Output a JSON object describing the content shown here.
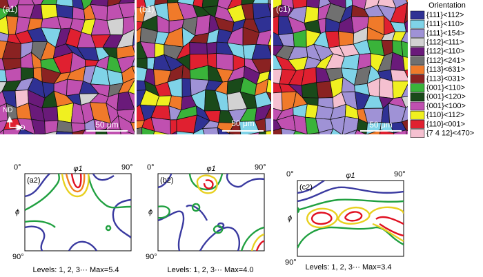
{
  "maps": [
    {
      "label": "(a1)",
      "scale": "50 μm"
    },
    {
      "label": "(b1)",
      "scale": "50 μm"
    },
    {
      "label": "(c1)",
      "scale": "50 μm"
    }
  ],
  "axes": {
    "nd": "ND",
    "rd": "RD"
  },
  "legend": {
    "title": "Orientation",
    "items": [
      {
        "label": "{111}<112>",
        "color": "#2f3194"
      },
      {
        "label": "{111}<110>",
        "color": "#7fd3e8"
      },
      {
        "label": "{111}<154>",
        "color": "#9f92d6"
      },
      {
        "label": "{112}<111>",
        "color": "#d2d2d2"
      },
      {
        "label": "{112}<110>",
        "color": "#6a1a7a"
      },
      {
        "label": "{112}<241>",
        "color": "#707070"
      },
      {
        "label": "{113}<631>",
        "color": "#f07a2a"
      },
      {
        "label": "{113}<031>",
        "color": "#8a2222"
      },
      {
        "label": "{001}<110>",
        "color": "#3ab33a"
      },
      {
        "label": "{001}<120>",
        "color": "#1a4a1a"
      },
      {
        "label": "{001}<100>",
        "color": "#c050b0"
      },
      {
        "label": "{110}<112>",
        "color": "#f0f020"
      },
      {
        "label": "{110}<001>",
        "color": "#e02030"
      },
      {
        "label": "{7 4 12}<470>",
        "color": "#f5c0d0"
      }
    ]
  },
  "odf": [
    {
      "label": "(a2)",
      "start": "0°",
      "end_x": "90°",
      "x_label": "φ1",
      "y_label": "ϕ",
      "end_y": "90°",
      "caption": "Levels: 1, 2, 3··· Max=5.4"
    },
    {
      "label": "(b2)",
      "start": "0°",
      "end_x": "90°",
      "x_label": "φ1",
      "y_label": "ϕ",
      "end_y": "90°",
      "caption": "Levels: 1, 2, 3··· Max=4.0"
    },
    {
      "label": "(c2)",
      "start": "0°",
      "end_x": "90°",
      "x_label": "φ1",
      "y_label": "ϕ",
      "end_y": "90°",
      "caption": "Levels: 1, 2, 3··· Max=3.4"
    }
  ]
}
